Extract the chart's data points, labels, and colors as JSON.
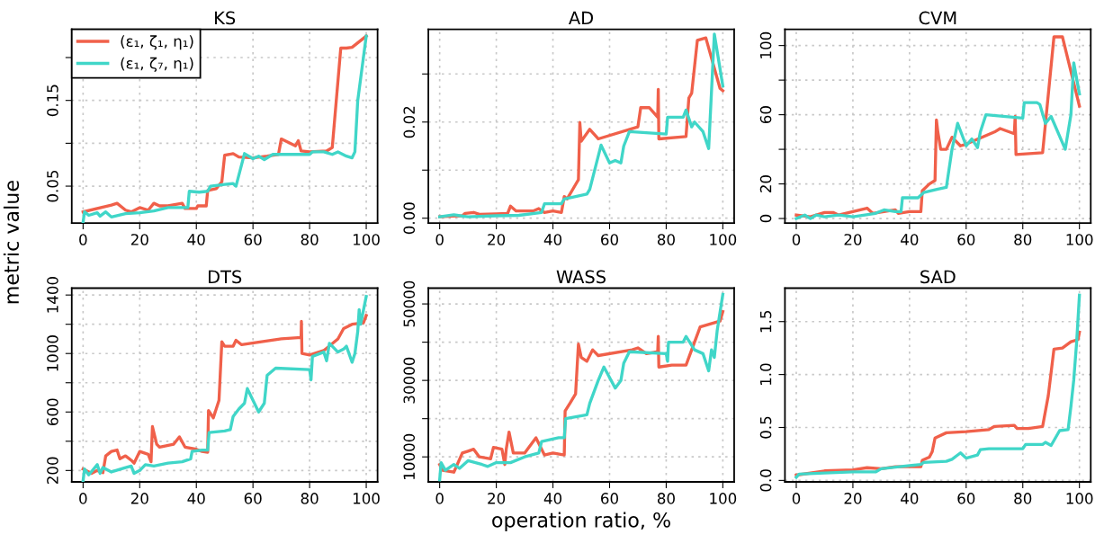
{
  "chart_data": [
    {
      "type": "line",
      "title": "KS",
      "ylabel": "metric value",
      "legend": "top left",
      "grid": true,
      "line_style": "solid",
      "marker": "none",
      "xlim": [
        -4,
        104
      ],
      "xticks": [
        0,
        20,
        40,
        60,
        80,
        100
      ],
      "ylim": [
        0.007,
        0.233
      ],
      "yticks": [
        0.05,
        {
          "value": 0.1,
          "label": null
        },
        0.15,
        {
          "value": 0.2,
          "label": null
        }
      ],
      "series": [
        {
          "name": "(ε₁, ζ₁, η₁)",
          "color": "#f0604a",
          "x": [
            0,
            10,
            12,
            15,
            17,
            20,
            23,
            25,
            27,
            30,
            35,
            36,
            40,
            40.5,
            43.5,
            44,
            47,
            49,
            50,
            53,
            55,
            60,
            65,
            69,
            70,
            75,
            76,
            77,
            80,
            86,
            88,
            91,
            93,
            95,
            100
          ],
          "values": [
            0.02,
            0.028,
            0.03,
            0.022,
            0.02,
            0.025,
            0.022,
            0.03,
            0.027,
            0.027,
            0.03,
            0.024,
            0.024,
            0.027,
            0.027,
            0.045,
            0.047,
            0.055,
            0.086,
            0.088,
            0.084,
            0.083,
            0.085,
            0.087,
            0.105,
            0.097,
            0.103,
            0.091,
            0.09,
            0.091,
            0.095,
            0.211,
            0.211,
            0.212,
            0.225
          ]
        },
        {
          "name": "(ε₁, ζ₇, η₁)",
          "color": "#40d6c8",
          "x": [
            0,
            0.5,
            2,
            5,
            6,
            8,
            10,
            15,
            20,
            25,
            30,
            35,
            37,
            37.5,
            41,
            44,
            45,
            50,
            53,
            54,
            57,
            60,
            62,
            64,
            67,
            70,
            80,
            81,
            85,
            88,
            90,
            93,
            95,
            96,
            97,
            99,
            100
          ],
          "values": [
            0.008,
            0.02,
            0.016,
            0.019,
            0.015,
            0.02,
            0.014,
            0.018,
            0.019,
            0.021,
            0.025,
            0.025,
            0.025,
            0.044,
            0.043,
            0.044,
            0.05,
            0.052,
            0.053,
            0.05,
            0.088,
            0.082,
            0.085,
            0.081,
            0.087,
            0.087,
            0.087,
            0.09,
            0.09,
            0.087,
            0.09,
            0.085,
            0.083,
            0.09,
            0.15,
            0.2,
            0.225
          ]
        }
      ]
    },
    {
      "type": "line",
      "title": "AD",
      "grid": true,
      "line_style": "solid",
      "marker": "none",
      "xlim": [
        -4,
        104
      ],
      "xticks": [
        0,
        20,
        40,
        60,
        80,
        100
      ],
      "ylim": [
        -0.001,
        0.0393
      ],
      "yticks": [
        {
          "value": 0,
          "label": "0.00"
        },
        {
          "value": 0.01,
          "label": null
        },
        0.02,
        {
          "value": 0.03,
          "label": null
        }
      ],
      "series": [
        {
          "color": "#f0604a",
          "x": [
            0,
            8,
            9,
            12,
            14,
            20,
            24,
            25,
            27,
            33,
            35,
            37,
            40,
            43,
            44,
            45,
            48,
            49,
            49.5,
            50,
            53,
            56,
            70,
            71,
            74,
            77,
            77.2,
            77.4,
            87,
            88,
            89,
            91,
            94,
            99,
            100
          ],
          "values": [
            0.0003,
            0.0005,
            0.001,
            0.0012,
            0.0008,
            0.0009,
            0.001,
            0.0025,
            0.0015,
            0.0015,
            0.002,
            0.0012,
            0.0015,
            0.0012,
            0.0045,
            0.004,
            0.007,
            0.008,
            0.0199,
            0.016,
            0.0185,
            0.0165,
            0.019,
            0.023,
            0.023,
            0.021,
            0.0268,
            0.0165,
            0.017,
            0.025,
            0.026,
            0.037,
            0.0375,
            0.027,
            0.0265
          ]
        },
        {
          "color": "#40d6c8",
          "x": [
            0,
            5,
            10,
            20,
            28,
            36,
            37,
            43,
            44,
            52,
            53,
            57,
            60,
            62,
            64,
            65,
            67,
            80,
            80.5,
            86,
            87,
            89,
            90,
            93,
            95,
            97,
            100
          ],
          "values": [
            0.0003,
            0.0007,
            0.0003,
            0.0005,
            0.0006,
            0.0012,
            0.003,
            0.003,
            0.004,
            0.005,
            0.006,
            0.0152,
            0.0115,
            0.012,
            0.0115,
            0.015,
            0.018,
            0.0175,
            0.021,
            0.021,
            0.0225,
            0.019,
            0.02,
            0.018,
            0.0145,
            0.0383,
            0.0275
          ]
        }
      ]
    },
    {
      "type": "line",
      "title": "CVM",
      "grid": true,
      "line_style": "solid",
      "marker": "none",
      "xlim": [
        -4,
        104
      ],
      "xticks": [
        0,
        20,
        40,
        60,
        80,
        100
      ],
      "ylim": [
        -2.6,
        109.4
      ],
      "yticks": [
        0,
        20,
        {
          "value": 40,
          "label": null
        },
        60,
        {
          "value": 80,
          "label": null
        },
        100
      ],
      "series": [
        {
          "color": "#f0604a",
          "x": [
            0,
            5,
            10,
            13,
            15,
            20,
            25,
            27,
            35,
            36,
            40,
            44,
            44.5,
            47,
            49,
            49.5,
            50,
            51,
            53,
            55,
            58,
            60,
            70,
            72,
            77,
            77.3,
            77.6,
            87,
            91,
            94,
            100
          ],
          "values": [
            2,
            1,
            3.5,
            3.5,
            2,
            4,
            6,
            3,
            5,
            3,
            4,
            4,
            16,
            20,
            22,
            57,
            50,
            40,
            40,
            47,
            42,
            43,
            50,
            52,
            49,
            59,
            37,
            38,
            105,
            105,
            65
          ]
        },
        {
          "color": "#40d6c8",
          "x": [
            0,
            3,
            5,
            7,
            10,
            15,
            20,
            28,
            31,
            35,
            37,
            37.5,
            43,
            45,
            50,
            53,
            55,
            57,
            60,
            62,
            64,
            65,
            67,
            80,
            80.5,
            85,
            86,
            88,
            90,
            95,
            97,
            98,
            100
          ],
          "values": [
            0,
            2,
            0,
            2,
            1,
            2,
            1,
            3,
            5,
            4,
            4,
            12,
            12,
            15,
            17,
            18,
            40,
            55,
            42,
            46,
            41,
            50,
            60,
            58,
            67,
            67,
            66,
            55,
            59,
            40,
            60,
            90,
            72
          ]
        }
      ]
    },
    {
      "type": "line",
      "title": "DTS",
      "grid": true,
      "line_style": "solid",
      "marker": "none",
      "xlim": [
        -4,
        104
      ],
      "xticks": [
        0,
        20,
        40,
        60,
        80,
        100
      ],
      "ylim": [
        122,
        1447
      ],
      "yticks": [
        200,
        {
          "value": 400,
          "label": null
        },
        600,
        {
          "value": 800,
          "label": null
        },
        1000,
        {
          "value": 1200,
          "label": null
        },
        1400
      ],
      "series": [
        {
          "color": "#f0604a",
          "x": [
            0,
            3,
            5,
            7,
            8,
            10,
            12,
            13,
            15,
            17,
            18,
            20,
            23,
            24,
            24.5,
            26,
            27,
            32,
            34,
            36,
            40,
            42,
            44,
            44.3,
            46,
            47,
            48,
            49,
            50,
            53,
            54,
            56,
            70,
            77,
            77.1,
            77.3,
            80,
            85,
            90,
            92,
            95,
            99,
            100
          ],
          "values": [
            210,
            180,
            200,
            185,
            300,
            330,
            340,
            280,
            300,
            270,
            250,
            330,
            310,
            260,
            500,
            380,
            360,
            380,
            430,
            360,
            345,
            330,
            325,
            610,
            560,
            620,
            680,
            1080,
            1050,
            1050,
            1090,
            1060,
            1100,
            1110,
            1220,
            1000,
            990,
            1020,
            1100,
            1170,
            1200,
            1210,
            1260
          ]
        },
        {
          "color": "#40d6c8",
          "x": [
            0,
            0.5,
            2,
            5,
            6,
            7,
            10,
            15,
            17,
            18,
            20,
            22,
            25,
            30,
            35,
            38,
            38.5,
            42,
            44,
            44.5,
            50,
            52,
            53,
            55,
            57,
            58,
            62,
            64,
            65,
            68,
            80,
            80.5,
            81,
            85,
            86,
            87,
            90,
            92,
            93,
            95,
            96,
            97,
            97.5,
            98,
            100
          ],
          "values": [
            130,
            210,
            170,
            240,
            180,
            220,
            190,
            220,
            230,
            180,
            200,
            240,
            230,
            250,
            260,
            280,
            330,
            340,
            340,
            460,
            470,
            480,
            570,
            620,
            660,
            760,
            600,
            660,
            850,
            900,
            890,
            820,
            980,
            1010,
            950,
            1070,
            1010,
            1030,
            1050,
            940,
            1000,
            1150,
            1300,
            1200,
            1390
          ]
        }
      ]
    },
    {
      "type": "line",
      "title": "WASS",
      "xlabel": "operation ratio, %",
      "grid": true,
      "line_style": "solid",
      "marker": "none",
      "xlim": [
        -4,
        104
      ],
      "xticks": [
        0,
        20,
        40,
        60,
        80,
        100
      ],
      "ylim": [
        3460,
        54130
      ],
      "yticks": [
        10000,
        {
          "value": 20000,
          "label": null
        },
        30000,
        {
          "value": 40000,
          "label": null
        },
        50000
      ],
      "series": [
        {
          "color": "#f0604a",
          "x": [
            0,
            1,
            5,
            8,
            10,
            12,
            14,
            18,
            19,
            22,
            23,
            23.5,
            24.5,
            26,
            30,
            34,
            37,
            40,
            44,
            44.3,
            46,
            48,
            49,
            50,
            52,
            54,
            56,
            68,
            70,
            73,
            77,
            77.2,
            77.4,
            82,
            87,
            89,
            92,
            99,
            100
          ],
          "values": [
            8000,
            6500,
            6000,
            11000,
            11500,
            12000,
            10000,
            9500,
            12500,
            12000,
            8000,
            12000,
            16500,
            11000,
            11000,
            15000,
            10500,
            11000,
            10500,
            22000,
            24000,
            26500,
            39500,
            36000,
            35000,
            38000,
            36500,
            38000,
            38500,
            37000,
            37500,
            41500,
            33500,
            34000,
            34000,
            38000,
            44000,
            45500,
            48000
          ]
        },
        {
          "color": "#40d6c8",
          "x": [
            0,
            0.5,
            2,
            5,
            7,
            10,
            15,
            17,
            20,
            25,
            30,
            35,
            36,
            42,
            44,
            44.5,
            52,
            53,
            56,
            58,
            62,
            64,
            65,
            67,
            80,
            80.5,
            80.8,
            86,
            87,
            90,
            93,
            95,
            96,
            97,
            98,
            100
          ],
          "values": [
            4000,
            8500,
            6500,
            8000,
            7000,
            9000,
            8000,
            7500,
            8500,
            8500,
            10000,
            11000,
            14000,
            15000,
            15000,
            20000,
            21000,
            24000,
            30000,
            33500,
            28000,
            30000,
            34500,
            37500,
            37000,
            35000,
            40000,
            40000,
            41500,
            38000,
            37000,
            32500,
            38000,
            36000,
            43000,
            52500
          ]
        }
      ]
    },
    {
      "type": "line",
      "title": "SAD",
      "grid": true,
      "line_style": "solid",
      "marker": "none",
      "xlim": [
        -4,
        104
      ],
      "xticks": [
        0,
        20,
        40,
        60,
        80,
        100
      ],
      "ylim": [
        -0.014,
        1.816
      ],
      "yticks": [
        {
          "value": 0,
          "label": "0.0"
        },
        0.5,
        {
          "value": 1,
          "label": "1.0"
        },
        1.5
      ],
      "series": [
        {
          "color": "#f0604a",
          "x": [
            0,
            10,
            20,
            25,
            30,
            35,
            44,
            44.5,
            47,
            48,
            49,
            53,
            60,
            68,
            70,
            77,
            78,
            82,
            87,
            89,
            91,
            94,
            97,
            99.5,
            100
          ],
          "values": [
            0.05,
            0.09,
            0.1,
            0.12,
            0.11,
            0.13,
            0.13,
            0.19,
            0.22,
            0.27,
            0.4,
            0.45,
            0.46,
            0.48,
            0.51,
            0.52,
            0.49,
            0.49,
            0.51,
            0.8,
            1.24,
            1.25,
            1.31,
            1.33,
            1.4
          ]
        },
        {
          "color": "#40d6c8",
          "x": [
            0,
            1,
            10,
            20,
            25,
            28,
            30,
            40,
            44,
            45,
            53,
            55,
            58,
            60,
            64,
            65,
            68,
            80,
            81,
            87,
            88,
            90,
            93,
            96,
            97,
            98,
            99,
            100
          ],
          "values": [
            0.03,
            0.06,
            0.07,
            0.08,
            0.08,
            0.08,
            0.11,
            0.14,
            0.15,
            0.17,
            0.18,
            0.2,
            0.26,
            0.21,
            0.24,
            0.29,
            0.3,
            0.3,
            0.34,
            0.34,
            0.36,
            0.33,
            0.47,
            0.48,
            0.7,
            0.95,
            1.3,
            1.75
          ]
        }
      ]
    }
  ]
}
